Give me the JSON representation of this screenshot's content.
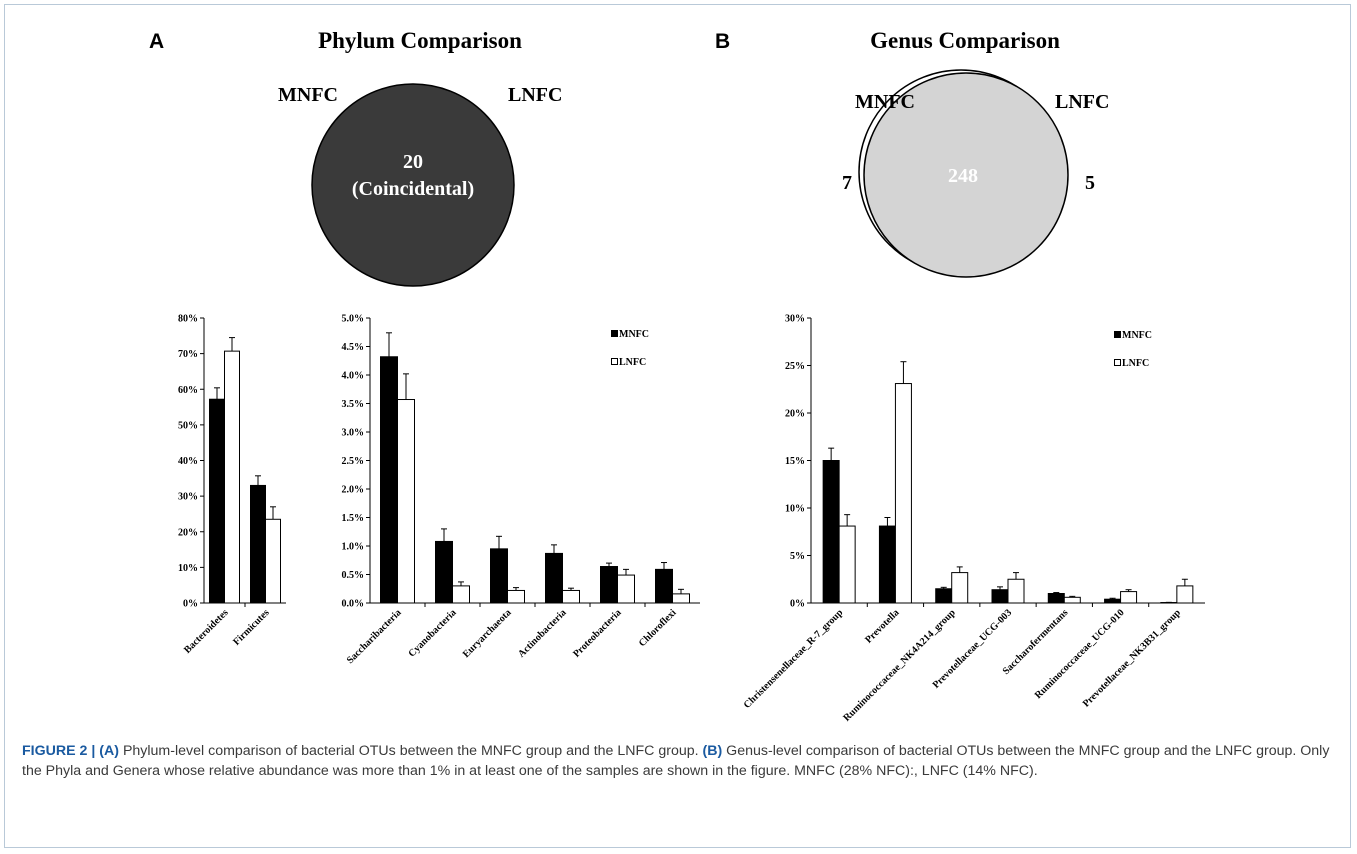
{
  "panels": {
    "a": {
      "letter": "A",
      "title": "Phylum Comparison"
    },
    "b": {
      "letter": "B",
      "title": "Genus Comparison"
    }
  },
  "venn_a": {
    "left_label": "MNFC",
    "right_label": "LNFC",
    "center_value": "20",
    "center_text": "(Coincidental)",
    "fill_color": "#3a3a3a"
  },
  "venn_b": {
    "left_label": "MNFC",
    "right_label": "LNFC",
    "left_only": "7",
    "shared": "248",
    "right_only": "5",
    "fill_color": "#d4d4d4"
  },
  "legend": {
    "series_1": "MNFC",
    "series_2": "LNFC"
  },
  "colors": {
    "mnfc": "#000000",
    "lnfc": "#ffffff"
  },
  "chart_data": [
    {
      "type": "bar",
      "id": "phylum-major",
      "categories": [
        "Bacteroidetes",
        "Firmicutes"
      ],
      "series": [
        {
          "name": "MNFC",
          "values": [
            57.2,
            33.0
          ],
          "errors": [
            3.2,
            2.7
          ]
        },
        {
          "name": "LNFC",
          "values": [
            70.7,
            23.5
          ],
          "errors": [
            3.8,
            3.5
          ]
        }
      ],
      "ylim": [
        0,
        80
      ],
      "yticks": [
        "0%",
        "10%",
        "20%",
        "30%",
        "40%",
        "50%",
        "60%",
        "70%",
        "80%"
      ],
      "ytick_values": [
        0,
        10,
        20,
        30,
        40,
        50,
        60,
        70,
        80
      ]
    },
    {
      "type": "bar",
      "id": "phylum-minor",
      "categories": [
        "Saccharibacteria",
        "Cyanobacteria",
        "Euryarchaeota",
        "Actinobacteria",
        "Proteobacteria",
        "Chloroflexi"
      ],
      "series": [
        {
          "name": "MNFC",
          "values": [
            4.32,
            1.08,
            0.95,
            0.87,
            0.64,
            0.59
          ],
          "errors": [
            0.42,
            0.22,
            0.22,
            0.15,
            0.06,
            0.12
          ]
        },
        {
          "name": "LNFC",
          "values": [
            3.57,
            0.3,
            0.22,
            0.22,
            0.49,
            0.16
          ],
          "errors": [
            0.45,
            0.07,
            0.05,
            0.04,
            0.1,
            0.08
          ]
        }
      ],
      "ylim": [
        0,
        5
      ],
      "yticks": [
        "0.0%",
        "0.5%",
        "1.0%",
        "1.5%",
        "2.0%",
        "2.5%",
        "3.0%",
        "3.5%",
        "4.0%",
        "4.5%",
        "5.0%"
      ],
      "ytick_values": [
        0,
        0.5,
        1,
        1.5,
        2,
        2.5,
        3,
        3.5,
        4,
        4.5,
        5
      ],
      "legend": "top-right"
    },
    {
      "type": "bar",
      "id": "genus",
      "categories": [
        "Christensenellaceae_R-7_group",
        "Prevotella",
        "Ruminococcaceae_NK4A214_group",
        "Prevotellaceae_UCG-003",
        "Saccharofermentans",
        "Ruminococcaceae_UCG-010",
        "Prevotellaceae_NK3B31_group"
      ],
      "series": [
        {
          "name": "MNFC",
          "values": [
            15.0,
            8.1,
            1.5,
            1.4,
            1.0,
            0.4,
            0.05
          ],
          "errors": [
            1.3,
            0.9,
            0.15,
            0.3,
            0.1,
            0.1,
            0.02
          ]
        },
        {
          "name": "LNFC",
          "values": [
            8.1,
            23.1,
            3.2,
            2.5,
            0.6,
            1.2,
            1.8
          ],
          "errors": [
            1.2,
            2.3,
            0.6,
            0.7,
            0.1,
            0.2,
            0.7
          ]
        }
      ],
      "ylim": [
        0,
        30
      ],
      "yticks": [
        "0%",
        "5%",
        "10%",
        "15%",
        "20%",
        "25%",
        "30%"
      ],
      "ytick_values": [
        0,
        5,
        10,
        15,
        20,
        25,
        30
      ],
      "legend": "top-right"
    }
  ],
  "caption": {
    "figure_label": "FIGURE 2 |",
    "a_label": "(A)",
    "a_text": " Phylum-level comparison of bacterial OTUs between the MNFC group and the LNFC group. ",
    "b_label": "(B)",
    "b_text": " Genus-level comparison of bacterial OTUs between the MNFC group and the LNFC group. Only the Phyla and Genera whose relative abundance was more than 1% in at least one of the samples are shown in the figure. MNFC (28% NFC):, LNFC (14% NFC)."
  }
}
